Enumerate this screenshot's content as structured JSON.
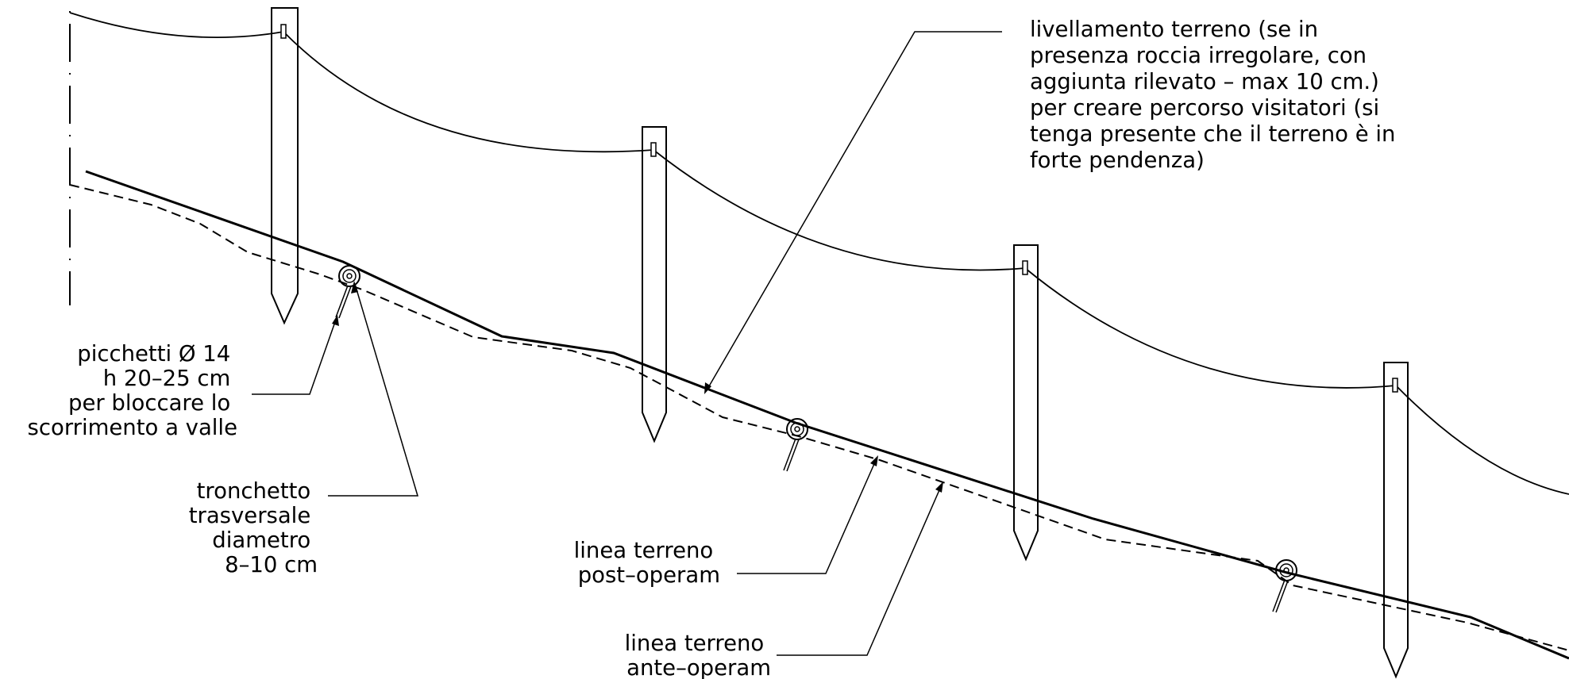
{
  "labels": {
    "livellamento": [
      "livellamento terreno   (se in",
      "presenza roccia irregolare, con",
      "aggiunta rilevato – max 10 cm.)",
      "per creare percorso visitatori (si",
      "tenga presente che il terreno è in",
      "forte pendenza)"
    ],
    "picchetti": [
      "picchetti Ø 14",
      "h 20–25 cm",
      "per bloccare lo",
      "scorrimento a valle"
    ],
    "tronchetto": [
      "tronchetto",
      "trasversale",
      "diametro",
      "8–10 cm"
    ],
    "post_operam": [
      "linea terreno",
      "post–operam"
    ],
    "ante_operam": [
      "linea terreno",
      "ante–operam"
    ]
  },
  "colors": {
    "line": "#000000",
    "background": "#ffffff"
  }
}
